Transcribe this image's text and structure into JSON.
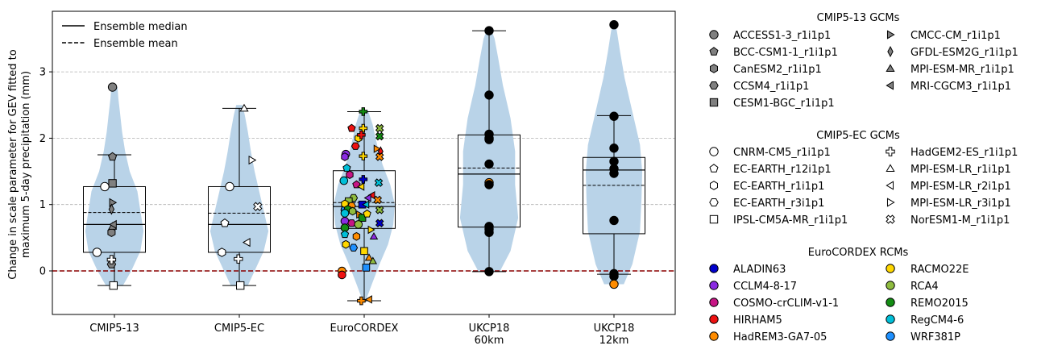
{
  "chart_data": {
    "type": "violin",
    "ylabel": "Change in scale parameter for GEV fitted to maximum 5-day precipitation (mm)",
    "ylabel_lines": [
      "Change in scale parameter for GEV fitted to",
      "maximum 5-day precipitation (mm)"
    ],
    "ylim": [
      -0.65,
      3.9
    ],
    "yticks": [
      0,
      1,
      2,
      3
    ],
    "grid": "horizontal dashed",
    "zero_line": {
      "value": 0,
      "color": "#8b0000"
    },
    "violin_color": "#b9d3e8",
    "categories": [
      {
        "label": "CMIP5-13",
        "label_lines": [
          "CMIP5-13"
        ]
      },
      {
        "label": "CMIP5-EC",
        "label_lines": [
          "CMIP5-EC"
        ]
      },
      {
        "label": "EuroCORDEX",
        "label_lines": [
          "EuroCORDEX"
        ]
      },
      {
        "label": "UKCP18 60km",
        "label_lines": [
          "UKCP18",
          "60km"
        ]
      },
      {
        "label": "UKCP18 12km",
        "label_lines": [
          "UKCP18",
          "12km"
        ]
      }
    ],
    "boxes": [
      {
        "q1": 0.28,
        "median": 0.7,
        "mean": 0.88,
        "q3": 1.27,
        "whisker_low": -0.22,
        "whisker_high": 1.75
      },
      {
        "q1": 0.28,
        "median": 0.7,
        "mean": 0.87,
        "q3": 1.27,
        "whisker_low": -0.22,
        "whisker_high": 2.45
      },
      {
        "q1": 0.64,
        "median": 0.97,
        "mean": 1.03,
        "q3": 1.51,
        "whisker_low": -0.45,
        "whisker_high": 2.4
      },
      {
        "q1": 0.66,
        "median": 1.46,
        "mean": 1.55,
        "q3": 2.05,
        "whisker_low": -0.01,
        "whisker_high": 3.62
      },
      {
        "q1": 0.56,
        "median": 1.52,
        "mean": 1.29,
        "q3": 1.71,
        "whisker_low": -0.05,
        "whisker_high": 2.34
      }
    ],
    "violins": [
      {
        "min": -0.22,
        "max": 2.77,
        "profile": [
          [
            -0.22,
            0.28
          ],
          [
            0,
            0.55
          ],
          [
            0.3,
            0.85
          ],
          [
            0.6,
            0.95
          ],
          [
            0.9,
            0.85
          ],
          [
            1.2,
            0.75
          ],
          [
            1.5,
            0.5
          ],
          [
            1.8,
            0.35
          ],
          [
            2.1,
            0.25
          ],
          [
            2.4,
            0.18
          ],
          [
            2.6,
            0.13
          ],
          [
            2.77,
            0.1
          ]
        ]
      },
      {
        "min": -0.22,
        "max": 2.5,
        "profile": [
          [
            -0.22,
            0.28
          ],
          [
            0,
            0.5
          ],
          [
            0.3,
            0.8
          ],
          [
            0.6,
            0.95
          ],
          [
            0.9,
            0.8
          ],
          [
            1.2,
            0.65
          ],
          [
            1.5,
            0.5
          ],
          [
            1.8,
            0.38
          ],
          [
            2.1,
            0.28
          ],
          [
            2.35,
            0.18
          ],
          [
            2.5,
            0.1
          ]
        ]
      },
      {
        "min": -0.45,
        "max": 2.42,
        "profile": [
          [
            -0.45,
            0.05
          ],
          [
            -0.2,
            0.25
          ],
          [
            0.1,
            0.5
          ],
          [
            0.4,
            0.78
          ],
          [
            0.7,
            0.95
          ],
          [
            1.0,
            1.0
          ],
          [
            1.3,
            0.85
          ],
          [
            1.6,
            0.6
          ],
          [
            1.9,
            0.42
          ],
          [
            2.2,
            0.28
          ],
          [
            2.42,
            0.12
          ]
        ]
      },
      {
        "min": -0.01,
        "max": 3.65,
        "profile": [
          [
            -0.01,
            0.35
          ],
          [
            0.3,
            0.7
          ],
          [
            0.8,
            0.95
          ],
          [
            1.3,
            0.85
          ],
          [
            1.8,
            0.85
          ],
          [
            2.3,
            0.7
          ],
          [
            2.8,
            0.45
          ],
          [
            3.2,
            0.3
          ],
          [
            3.5,
            0.18
          ],
          [
            3.65,
            0.06
          ]
        ]
      },
      {
        "min": -0.2,
        "max": 3.72,
        "profile": [
          [
            -0.2,
            0.32
          ],
          [
            0.1,
            0.6
          ],
          [
            0.6,
            0.85
          ],
          [
            1.1,
            0.9
          ],
          [
            1.5,
            0.92
          ],
          [
            1.9,
            0.85
          ],
          [
            2.4,
            0.6
          ],
          [
            2.9,
            0.35
          ],
          [
            3.3,
            0.2
          ],
          [
            3.6,
            0.1
          ],
          [
            3.72,
            0.05
          ]
        ]
      }
    ],
    "legend_lines": [
      {
        "name": "Ensemble median",
        "style": "solid"
      },
      {
        "name": "Ensemble mean",
        "style": "dashed"
      }
    ],
    "points": {
      "cmip5_13": [
        {
          "model": "ACCESS1-3_r1i1p1",
          "marker": "circle",
          "y": 2.77,
          "dx": -0.02
        },
        {
          "model": "BCC-CSM1-1_r1i1p1",
          "marker": "pentagon",
          "y": 1.72,
          "dx": -0.02
        },
        {
          "model": "CanESM2_r1i1p1",
          "marker": "hexagon",
          "y": 0.58,
          "dx": -0.03
        },
        {
          "model": "CCSM4_r1i1p1",
          "marker": "hexagon2",
          "y": 0.1,
          "dx": -0.03
        },
        {
          "model": "CESM1-BGC_r1i1p1",
          "marker": "square",
          "y": 1.32,
          "dx": -0.02
        },
        {
          "model": "CMCC-CM_r1i1p1",
          "marker": "triangle-right",
          "y": 1.03,
          "dx": -0.02
        },
        {
          "model": "GFDL-ESM2G_r1i1p1",
          "marker": "thin-diamond",
          "y": 0.93,
          "dx": -0.03
        },
        {
          "model": "MPI-ESM-MR_r1i1p1",
          "marker": "triangle-up",
          "y": 0.67,
          "dx": -0.02
        },
        {
          "model": "MRI-CGCM3_r1i1p1",
          "marker": "triangle-left",
          "y": 0.7,
          "dx": -0.01
        }
      ],
      "cmip5_13_open": [
        {
          "marker": "circle",
          "y": 0.28,
          "dx": -0.18
        },
        {
          "marker": "circle",
          "y": 1.27,
          "dx": -0.1
        },
        {
          "marker": "plus",
          "y": 0.17,
          "dx": -0.03
        },
        {
          "marker": "square",
          "y": -0.22,
          "dx": -0.01
        }
      ],
      "cmip5_ec": [
        {
          "model": "CNRM-CM5_r1i1p1",
          "marker": "circle",
          "y": 1.27,
          "dx": -0.1
        },
        {
          "model": "EC-EARTH_r12i1p1",
          "marker": "pentagon",
          "y": 0.72,
          "dx": -0.15
        },
        {
          "model": "EC-EARTH_r1i1p1",
          "marker": "hexagon",
          "y": 0.28,
          "dx": -0.18
        },
        {
          "model": "HadGEM2-ES_r1i1p1",
          "marker": "plus",
          "y": 0.18,
          "dx": -0.01
        },
        {
          "model": "IPSL-CM5A-MR_r1i1p1",
          "marker": "square",
          "y": -0.22,
          "dx": 0.01
        },
        {
          "model": "MPI-ESM-LR_r1i1p1",
          "marker": "triangle-up",
          "y": 2.45,
          "dx": 0.05
        },
        {
          "model": "MPI-ESM-LR_r2i1p1",
          "marker": "triangle-left",
          "y": 0.43,
          "dx": 0.08
        },
        {
          "model": "MPI-ESM-LR_r3i1p1",
          "marker": "triangle-right",
          "y": 1.67,
          "dx": 0.13
        },
        {
          "model": "NorESM1-M_r1i1p1",
          "marker": "x-filled",
          "y": 0.97,
          "dx": 0.19
        }
      ],
      "ukcp_60": [
        3.62,
        2.65,
        2.06,
        2.0,
        1.98,
        1.61,
        1.33,
        1.3,
        0.67,
        0.63,
        0.58,
        -0.01
      ],
      "ukcp_60_highlight_index": 6,
      "ukcp_12": [
        3.71,
        2.33,
        1.85,
        1.65,
        1.54,
        1.47,
        0.76,
        -0.04,
        -0.08,
        -0.2
      ],
      "ukcp_12_highlight_index": 9
    },
    "euro_colors": {
      "ALADIN63": "#0000cc",
      "CCLM4-8-17": "#8b2be2",
      "COSMO-crCLIM-v1-1": "#c71585",
      "HIRHAM5": "#ee1111",
      "HadREM3-GA7-05": "#ff8c00",
      "RACMO22E": "#ffd700",
      "RCA4": "#8fbc3f",
      "REMO2015": "#138d13",
      "RegCM4-6": "#00bfd8",
      "WRF381P": "#1e90ff"
    },
    "euro_points": [
      [
        "HIRHAM5",
        "pentagon",
        2.15,
        -0.13
      ],
      [
        "RACMO22E",
        "plus",
        2.15,
        -0.01
      ],
      [
        "RCA4",
        "x-filled",
        2.15,
        0.16
      ],
      [
        "REMO2015",
        "plus",
        2.4,
        -0.01
      ],
      [
        "RACMO22E",
        "hexagon",
        2.0,
        -0.06
      ],
      [
        "HIRHAM5",
        "hexagon2",
        1.88,
        -0.09
      ],
      [
        "HIRHAM5",
        "plus",
        2.05,
        -0.03
      ],
      [
        "REMO2015",
        "x-filled",
        2.03,
        0.16
      ],
      [
        "HadREM3-GA7-05",
        "triangle-right",
        1.84,
        0.13
      ],
      [
        "HIRHAM5",
        "thin-diamond",
        1.8,
        0.17
      ],
      [
        "CCLM4-8-17",
        "circle",
        1.76,
        -0.19
      ],
      [
        "CCLM4-8-17",
        "hexagon",
        1.72,
        -0.2
      ],
      [
        "RACMO22E",
        "plus",
        1.73,
        -0.01
      ],
      [
        "HadREM3-GA7-05",
        "x-filled",
        1.72,
        0.16
      ],
      [
        "RegCM4-6",
        "pentagon",
        1.55,
        -0.18
      ],
      [
        "COSMO-crCLIM-v1-1",
        "hexagon",
        1.45,
        -0.15
      ],
      [
        "ALADIN63",
        "plus",
        1.38,
        -0.01
      ],
      [
        "RegCM4-6",
        "circle",
        1.36,
        -0.21
      ],
      [
        "RegCM4-6",
        "x-filled",
        1.33,
        0.15
      ],
      [
        "COSMO-crCLIM-v1-1",
        "pentagon",
        1.3,
        -0.08
      ],
      [
        "RACMO22E",
        "triangle-left",
        1.27,
        -0.03
      ],
      [
        "HIRHAM5",
        "triangle-left",
        1.14,
        0.08
      ],
      [
        "RCA4",
        "hexagon2",
        1.1,
        -0.11
      ],
      [
        "HadREM3-GA7-05",
        "x-filled",
        1.07,
        0.14
      ],
      [
        "CCLM4-8-17",
        "triangle-left",
        1.1,
        0.04
      ],
      [
        "ALADIN63",
        "square",
        1.0,
        -0.02
      ],
      [
        "WRF381P",
        "circle",
        0.92,
        -0.2
      ],
      [
        "RCA4",
        "square",
        1.05,
        -0.16
      ],
      [
        "RACMO22E",
        "hexagon",
        1.01,
        -0.2
      ],
      [
        "HadREM3-GA7-05",
        "hexagon2",
        0.98,
        -0.13
      ],
      [
        "RegCM4-6",
        "triangle-left",
        1.0,
        0.02
      ],
      [
        "RCA4",
        "x-filled",
        0.92,
        0.16
      ],
      [
        "REMO2015",
        "hexagon",
        0.93,
        -0.17
      ],
      [
        "RegCM4-6",
        "circle",
        0.87,
        -0.2
      ],
      [
        "RCA4",
        "hexagon",
        0.9,
        -0.12
      ],
      [
        "HadREM3-GA7-05",
        "triangle-right",
        0.85,
        -0.05
      ],
      [
        "REMO2015",
        "square",
        0.8,
        -0.02
      ],
      [
        "RACMO22E",
        "pentagon",
        0.86,
        0.03
      ],
      [
        "CCLM4-8-17",
        "circle",
        0.75,
        -0.2
      ],
      [
        "COSMO-crCLIM-v1-1",
        "hexagon2",
        0.72,
        -0.13
      ],
      [
        "ALADIN63",
        "x-filled",
        0.72,
        0.16
      ],
      [
        "RCA4",
        "circle",
        0.7,
        -0.06
      ],
      [
        "REMO2015",
        "circle",
        0.65,
        -0.2
      ],
      [
        "RACMO22E",
        "triangle-right",
        0.62,
        0.07
      ],
      [
        "RegCM4-6",
        "pentagon",
        0.55,
        -0.2
      ],
      [
        "CCLM4-8-17",
        "triangle-up",
        0.52,
        0.1
      ],
      [
        "HadREM3-GA7-05",
        "hexagon",
        0.52,
        -0.08
      ],
      [
        "RACMO22E",
        "hexagon",
        0.4,
        -0.19
      ],
      [
        "WRF381P",
        "hexagon2",
        0.35,
        -0.11
      ],
      [
        "RACMO22E",
        "square",
        0.3,
        0.0
      ],
      [
        "HadREM3-GA7-05",
        "triangle-up",
        0.2,
        0.05
      ],
      [
        "RCA4",
        "triangle-up",
        0.15,
        0.09
      ],
      [
        "WRF381P",
        "square",
        0.05,
        0.02
      ],
      [
        "HadREM3-GA7-05",
        "circle",
        0.0,
        -0.23
      ],
      [
        "HIRHAM5",
        "circle",
        -0.06,
        -0.23
      ],
      [
        "HadREM3-GA7-05",
        "plus",
        -0.45,
        -0.03
      ],
      [
        "HadREM3-GA7-05",
        "triangle-left",
        -0.43,
        0.05
      ]
    ]
  },
  "legend": {
    "cmip5_13": {
      "title": "CMIP5-13 GCMs",
      "col1": [
        {
          "label": "ACCESS1-3_r1i1p1",
          "marker": "circle"
        },
        {
          "label": "BCC-CSM1-1_r1i1p1",
          "marker": "pentagon"
        },
        {
          "label": "CanESM2_r1i1p1",
          "marker": "hexagon"
        },
        {
          "label": "CCSM4_r1i1p1",
          "marker": "hexagon2"
        },
        {
          "label": "CESM1-BGC_r1i1p1",
          "marker": "square"
        }
      ],
      "col2": [
        {
          "label": "CMCC-CM_r1i1p1",
          "marker": "triangle-right"
        },
        {
          "label": "GFDL-ESM2G_r1i1p1",
          "marker": "thin-diamond"
        },
        {
          "label": "MPI-ESM-MR_r1i1p1",
          "marker": "triangle-up"
        },
        {
          "label": "MRI-CGCM3_r1i1p1",
          "marker": "triangle-left"
        }
      ]
    },
    "cmip5_ec": {
      "title": "CMIP5-EC GCMs",
      "col1": [
        {
          "label": "CNRM-CM5_r1i1p1",
          "marker": "circle"
        },
        {
          "label": "EC-EARTH_r12i1p1",
          "marker": "pentagon"
        },
        {
          "label": "EC-EARTH_r1i1p1",
          "marker": "hexagon"
        },
        {
          "label": "EC-EARTH_r3i1p1",
          "marker": "hexagon2"
        },
        {
          "label": "IPSL-CM5A-MR_r1i1p1",
          "marker": "square"
        }
      ],
      "col2": [
        {
          "label": "HadGEM2-ES_r1i1p1",
          "marker": "plus"
        },
        {
          "label": "MPI-ESM-LR_r1i1p1",
          "marker": "triangle-up"
        },
        {
          "label": "MPI-ESM-LR_r2i1p1",
          "marker": "triangle-left"
        },
        {
          "label": "MPI-ESM-LR_r3i1p1",
          "marker": "triangle-right"
        },
        {
          "label": "NorESM1-M_r1i1p1",
          "marker": "x-filled"
        }
      ]
    },
    "euro_cordex": {
      "title": "EuroCORDEX RCMs",
      "col1": [
        {
          "label": "ALADIN63",
          "color": "#0000cc"
        },
        {
          "label": "CCLM4-8-17",
          "color": "#8b2be2"
        },
        {
          "label": "COSMO-crCLIM-v1-1",
          "color": "#c71585"
        },
        {
          "label": "HIRHAM5",
          "color": "#ee1111"
        },
        {
          "label": "HadREM3-GA7-05",
          "color": "#ff8c00"
        }
      ],
      "col2": [
        {
          "label": "RACMO22E",
          "color": "#ffd700"
        },
        {
          "label": "RCA4",
          "color": "#8fbc3f"
        },
        {
          "label": "REMO2015",
          "color": "#138d13"
        },
        {
          "label": "RegCM4-6",
          "color": "#00bfd8"
        },
        {
          "label": "WRF381P",
          "color": "#1e90ff"
        }
      ]
    }
  }
}
